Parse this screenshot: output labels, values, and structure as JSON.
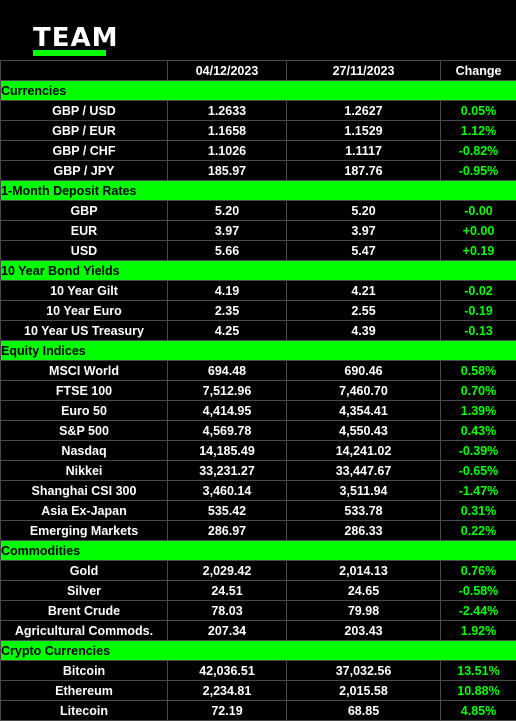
{
  "brand": {
    "logo_text": "TEAM",
    "accent_color": "#00ff00"
  },
  "columns": [
    "",
    "04/12/2023",
    "27/11/2023",
    "Change"
  ],
  "sections": [
    {
      "title": "Currencies",
      "rows": [
        {
          "name": "GBP / USD",
          "current": "1.2633",
          "previous": "1.2627",
          "change": "0.05%"
        },
        {
          "name": "GBP / EUR",
          "current": "1.1658",
          "previous": "1.1529",
          "change": "1.12%"
        },
        {
          "name": "GBP / CHF",
          "current": "1.1026",
          "previous": "1.1117",
          "change": "-0.82%"
        },
        {
          "name": "GBP / JPY",
          "current": "185.97",
          "previous": "187.76",
          "change": "-0.95%"
        }
      ]
    },
    {
      "title": "1-Month Deposit Rates",
      "rows": [
        {
          "name": "GBP",
          "current": "5.20",
          "previous": "5.20",
          "change": "-0.00"
        },
        {
          "name": "EUR",
          "current": "3.97",
          "previous": "3.97",
          "change": "+0.00"
        },
        {
          "name": "USD",
          "current": "5.66",
          "previous": "5.47",
          "change": "+0.19"
        }
      ]
    },
    {
      "title": "10 Year Bond Yields",
      "rows": [
        {
          "name": "10 Year Gilt",
          "current": "4.19",
          "previous": "4.21",
          "change": "-0.02"
        },
        {
          "name": "10 Year Euro",
          "current": "2.35",
          "previous": "2.55",
          "change": "-0.19"
        },
        {
          "name": "10 Year US Treasury",
          "current": "4.25",
          "previous": "4.39",
          "change": "-0.13"
        }
      ]
    },
    {
      "title": "Equity Indices",
      "rows": [
        {
          "name": "MSCI World",
          "current": "694.48",
          "previous": "690.46",
          "change": "0.58%"
        },
        {
          "name": "FTSE 100",
          "current": "7,512.96",
          "previous": "7,460.70",
          "change": "0.70%"
        },
        {
          "name": "Euro 50",
          "current": "4,414.95",
          "previous": "4,354.41",
          "change": "1.39%"
        },
        {
          "name": "S&P 500",
          "current": "4,569.78",
          "previous": "4,550.43",
          "change": "0.43%"
        },
        {
          "name": "Nasdaq",
          "current": "14,185.49",
          "previous": "14,241.02",
          "change": "-0.39%"
        },
        {
          "name": "Nikkei",
          "current": "33,231.27",
          "previous": "33,447.67",
          "change": "-0.65%"
        },
        {
          "name": "Shanghai CSI 300",
          "current": "3,460.14",
          "previous": "3,511.94",
          "change": "-1.47%"
        },
        {
          "name": "Asia Ex-Japan",
          "current": "535.42",
          "previous": "533.78",
          "change": "0.31%"
        },
        {
          "name": "Emerging Markets",
          "current": "286.97",
          "previous": "286.33",
          "change": "0.22%"
        }
      ]
    },
    {
      "title": "Commodities",
      "rows": [
        {
          "name": "Gold",
          "current": "2,029.42",
          "previous": "2,014.13",
          "change": "0.76%"
        },
        {
          "name": "Silver",
          "current": "24.51",
          "previous": "24.65",
          "change": "-0.58%"
        },
        {
          "name": "Brent Crude",
          "current": "78.03",
          "previous": "79.98",
          "change": "-2.44%"
        },
        {
          "name": "Agricultural Commods.",
          "current": "207.34",
          "previous": "203.43",
          "change": "1.92%"
        }
      ]
    },
    {
      "title": "Crypto Currencies",
      "rows": [
        {
          "name": "Bitcoin",
          "current": "42,036.51",
          "previous": "37,032.56",
          "change": "13.51%"
        },
        {
          "name": "Ethereum",
          "current": "2,234.81",
          "previous": "2,015.58",
          "change": "10.88%"
        },
        {
          "name": "Litecoin",
          "current": "72.19",
          "previous": "68.85",
          "change": "4.85%"
        }
      ]
    }
  ]
}
